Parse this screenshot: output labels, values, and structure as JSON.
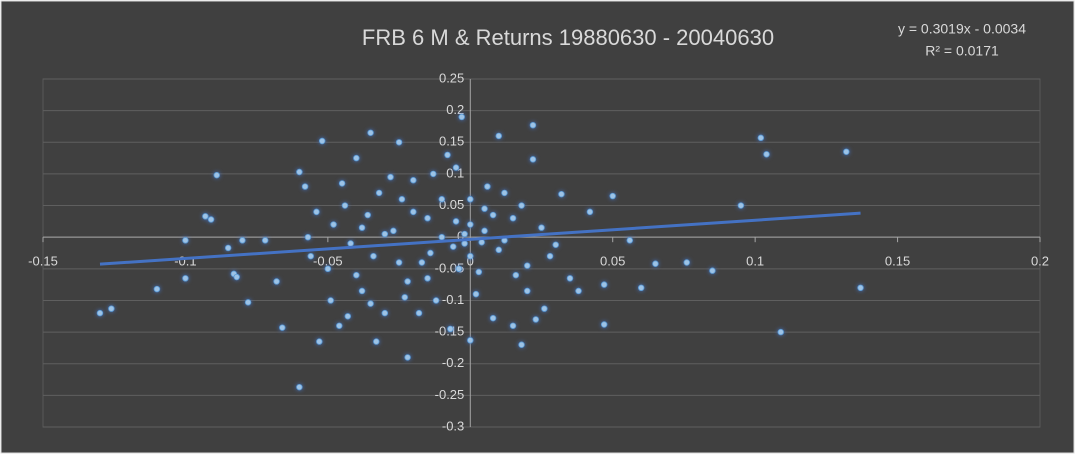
{
  "chart_data": {
    "type": "scatter",
    "title": "FRB 6 M & Returns 19880630 - 20040630",
    "annotations": [
      "y = 0.3019x - 0.0034",
      "R² = 0.0171"
    ],
    "trendline": {
      "slope": 0.3019,
      "intercept": -0.0034,
      "color": "#4472c4"
    },
    "color": "#9dc3e6",
    "grid": true,
    "xlim": [
      -0.15,
      0.2
    ],
    "xticks": [
      -0.15,
      -0.1,
      -0.05,
      0,
      0.05,
      0.1,
      0.15,
      0.2
    ],
    "ylim": [
      -0.3,
      0.25
    ],
    "yticks": [
      0.25,
      0.2,
      0.15,
      0.1,
      0.05,
      0,
      -0.05,
      -0.1,
      -0.15,
      -0.2,
      -0.25,
      -0.3
    ],
    "x": [
      -0.13,
      -0.126,
      -0.11,
      -0.1,
      -0.1,
      -0.093,
      -0.091,
      -0.089,
      -0.085,
      -0.083,
      -0.082,
      -0.08,
      -0.078,
      -0.072,
      -0.068,
      -0.066,
      -0.06,
      -0.06,
      -0.058,
      -0.057,
      -0.053,
      -0.052,
      0.05,
      0.056,
      0.06,
      0.065,
      0.076,
      0.085,
      0.095,
      0.102,
      0.104,
      0.109,
      0.132,
      0.137,
      -0.035,
      -0.003,
      0.022,
      -0.022,
      0.0,
      0.018,
      0.047,
      0.047,
      0.042,
      0.038,
      0.035,
      0.032,
      0.03,
      0.026,
      0.023,
      0.022,
      0.02,
      0.015,
      0.012,
      0.01,
      0.008,
      0.005,
      0.003,
      0.0,
      -0.002,
      -0.005,
      -0.007,
      -0.01,
      -0.012,
      -0.015,
      -0.017,
      -0.02,
      -0.022,
      -0.025,
      -0.027,
      -0.03,
      -0.032,
      -0.034,
      -0.036,
      -0.038,
      -0.04,
      -0.042,
      -0.044,
      -0.046,
      -0.048,
      -0.05,
      -0.045,
      -0.04,
      -0.035,
      -0.03,
      -0.025,
      -0.02,
      -0.015,
      -0.01,
      -0.005,
      0.0,
      0.005,
      0.01,
      0.015,
      0.02,
      0.025,
      -0.028,
      -0.018,
      -0.008,
      0.002,
      0.012,
      -0.043,
      -0.038,
      -0.024,
      -0.014,
      -0.004,
      0.006,
      0.016,
      -0.056,
      -0.054,
      -0.049,
      -0.033,
      -0.023,
      -0.013,
      0.0,
      0.008,
      -0.002,
      0.004,
      -0.006,
      0.018,
      0.028
    ],
    "values": [
      -0.12,
      -0.113,
      -0.082,
      -0.065,
      -0.005,
      0.033,
      0.028,
      0.098,
      -0.017,
      -0.058,
      -0.063,
      -0.005,
      -0.103,
      -0.005,
      -0.07,
      -0.143,
      0.103,
      -0.237,
      0.08,
      0.0,
      -0.165,
      0.152,
      0.065,
      -0.005,
      -0.08,
      -0.042,
      -0.04,
      -0.053,
      0.05,
      0.157,
      0.131,
      -0.15,
      0.135,
      -0.08,
      0.165,
      0.19,
      0.177,
      -0.19,
      -0.163,
      -0.17,
      -0.138,
      -0.075,
      0.04,
      -0.085,
      -0.065,
      0.068,
      -0.012,
      -0.113,
      -0.13,
      0.123,
      -0.085,
      -0.14,
      0.07,
      0.16,
      -0.128,
      0.045,
      -0.055,
      0.02,
      -0.01,
      0.11,
      -0.145,
      0.06,
      -0.1,
      0.03,
      -0.04,
      0.09,
      -0.07,
      0.15,
      0.01,
      -0.12,
      0.07,
      -0.03,
      0.035,
      -0.085,
      0.125,
      -0.01,
      0.05,
      -0.14,
      0.02,
      -0.05,
      0.085,
      -0.06,
      -0.105,
      0.005,
      -0.04,
      0.04,
      -0.065,
      0.0,
      0.025,
      -0.03,
      0.01,
      -0.02,
      0.03,
      -0.045,
      0.015,
      0.095,
      -0.12,
      0.13,
      -0.09,
      -0.005,
      -0.125,
      0.015,
      0.06,
      -0.025,
      -0.05,
      0.08,
      -0.06,
      -0.03,
      0.04,
      -0.1,
      -0.165,
      -0.095,
      0.1,
      0.06,
      0.035,
      0.005,
      -0.008,
      -0.015,
      0.05,
      -0.03
    ]
  }
}
